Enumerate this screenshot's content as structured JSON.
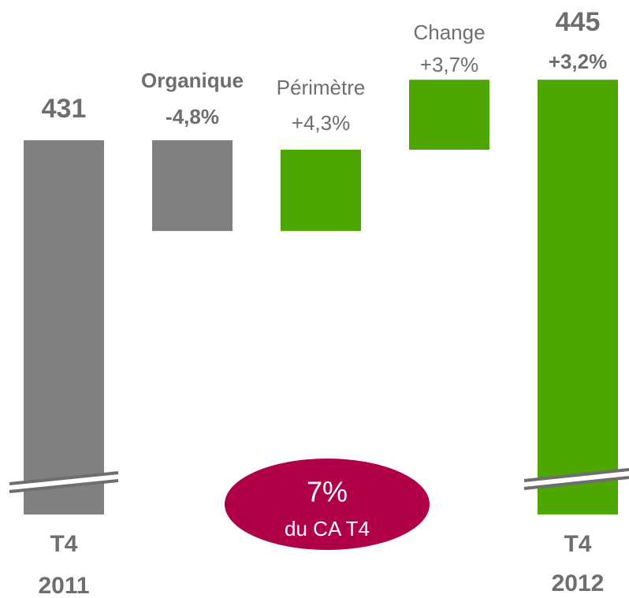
{
  "chart_data": {
    "type": "waterfall",
    "start": {
      "label_lines": [
        "T4",
        "2011"
      ],
      "value": 431,
      "color": "#808080"
    },
    "steps": [
      {
        "name": "Organique",
        "value": -4.8,
        "value_label": "-4,8%",
        "color": "#808080"
      },
      {
        "name": "Périmètre",
        "value": 4.3,
        "value_label": "+4,3%",
        "color": "#4ea600"
      },
      {
        "name": "Change",
        "value": 3.7,
        "value_label": "+3,7%",
        "color": "#4ea600"
      }
    ],
    "end": {
      "label_lines": [
        "T4",
        "2012"
      ],
      "value": 445,
      "change": 3.2,
      "change_label": "+3,2%",
      "color": "#4ea600"
    },
    "annotation": {
      "title": "7%",
      "text": "du CA T4",
      "color": "#b0004a"
    }
  }
}
